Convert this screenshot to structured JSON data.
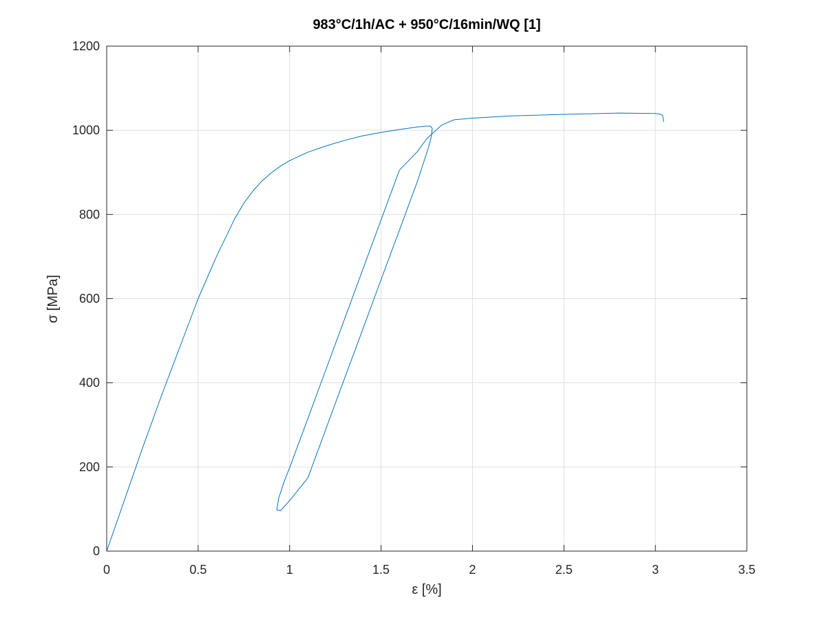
{
  "chart_data": {
    "type": "line",
    "title": "983°C/1h/AC + 950°C/16min/WQ [1]",
    "xlabel": "ε [%]",
    "ylabel": "σ [MPa]",
    "xlim": [
      0,
      3.5
    ],
    "ylim": [
      0,
      1200
    ],
    "xticks": [
      0,
      0.5,
      1,
      1.5,
      2,
      2.5,
      3,
      3.5
    ],
    "xtick_labels": [
      "0",
      "0.5",
      "1",
      "1.5",
      "2",
      "2.5",
      "3",
      "3.5"
    ],
    "yticks": [
      0,
      200,
      400,
      600,
      800,
      1000,
      1200
    ],
    "ytick_labels": [
      "0",
      "200",
      "400",
      "600",
      "800",
      "1000",
      "1200"
    ],
    "grid": true,
    "legend": "none",
    "series": [
      {
        "color": "#0072bd",
        "x": [
          0,
          0.1,
          0.2,
          0.3,
          0.4,
          0.5,
          0.6,
          0.65,
          0.7,
          0.75,
          0.8,
          0.85,
          0.9,
          0.95,
          1.0,
          1.1,
          1.2,
          1.3,
          1.4,
          1.5,
          1.6,
          1.7,
          1.75,
          1.77,
          1.78,
          1.775,
          1.76,
          1.7,
          1.6,
          1.5,
          1.4,
          1.3,
          1.2,
          1.1,
          1.0,
          0.95,
          0.93,
          0.94,
          0.97,
          1.0,
          1.1,
          1.2,
          1.3,
          1.4,
          1.5,
          1.6,
          1.7,
          1.75,
          1.8,
          1.83,
          1.86,
          1.9,
          2.0,
          2.2,
          2.5,
          2.8,
          3.0,
          3.03,
          3.04,
          3.045
        ],
        "y": [
          0,
          125,
          250,
          370,
          485,
          600,
          700,
          745,
          790,
          827,
          856,
          880,
          899,
          915,
          928,
          948,
          963,
          976,
          987,
          995,
          1002,
          1008,
          1010,
          1010,
          1005,
          985,
          960,
          880,
          762,
          645,
          527,
          410,
          292,
          174,
          120,
          96,
          98,
          125,
          165,
          198,
          315,
          433,
          551,
          669,
          787,
          905,
          950,
          980,
          1000,
          1012,
          1018,
          1025,
          1029,
          1034,
          1038,
          1041,
          1040,
          1038,
          1035,
          1020
        ]
      }
    ]
  }
}
